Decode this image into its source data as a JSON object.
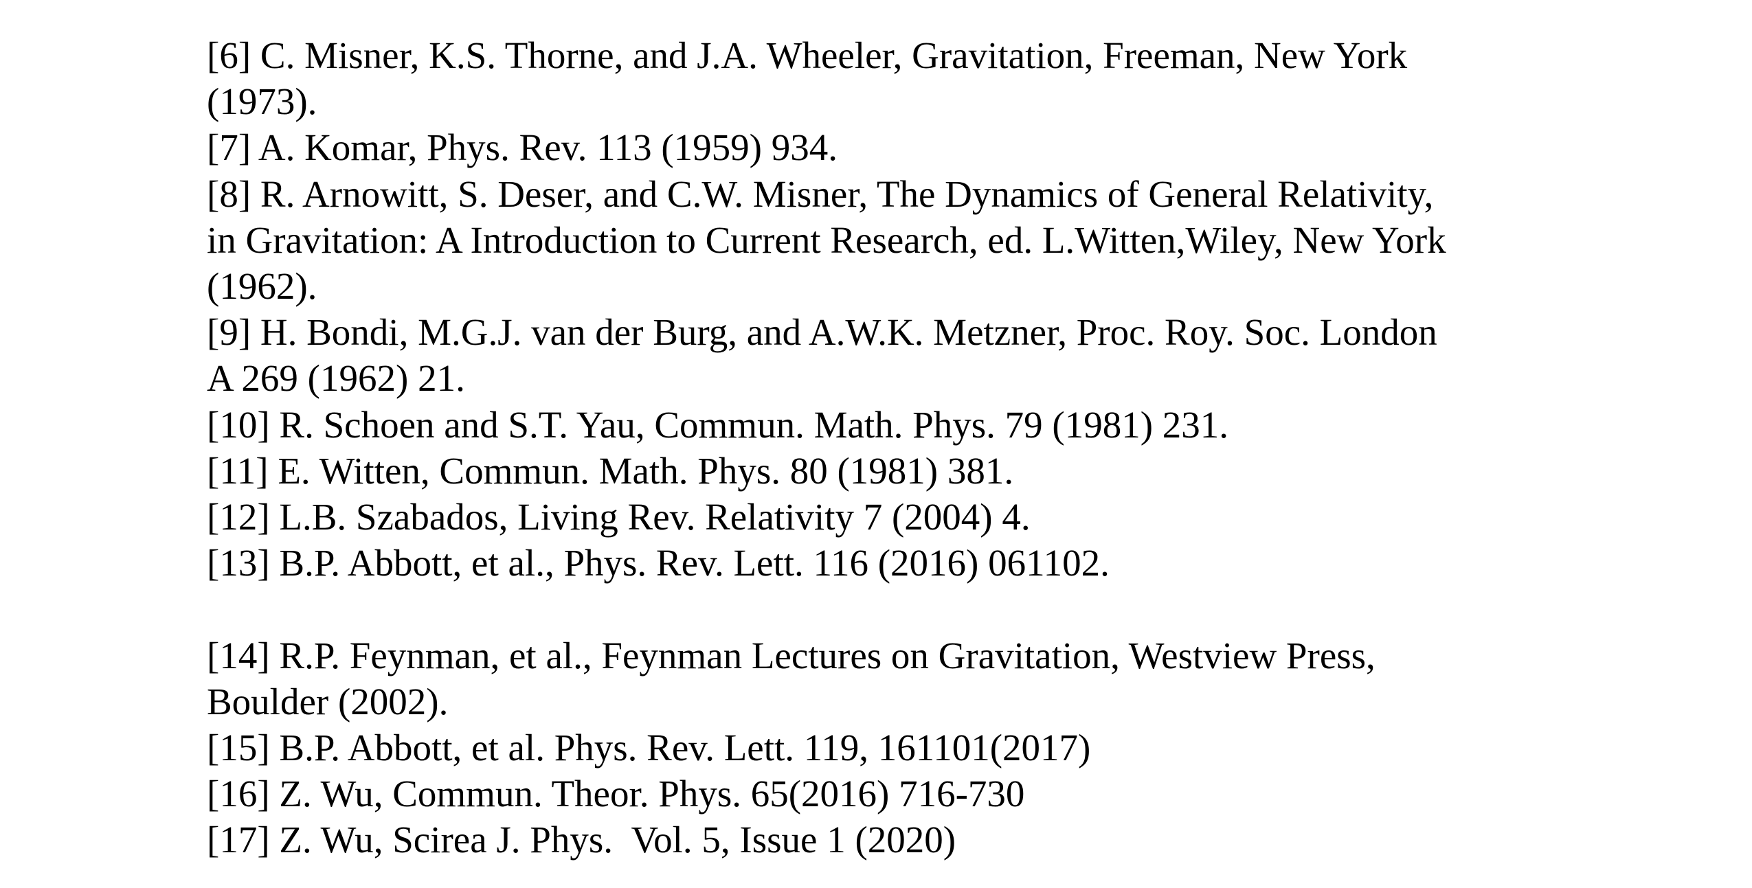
{
  "references": [
    {
      "lines": [
        "[6] C. Misner, K.S. Thorne, and J.A. Wheeler, Gravitation, Freeman, New York",
        "(1973)."
      ]
    },
    {
      "lines": [
        "[7] A. Komar, Phys. Rev. 113 (1959) 934."
      ]
    },
    {
      "lines": [
        "[8] R. Arnowitt, S. Deser, and C.W. Misner, The Dynamics of General Relativity,",
        "in Gravitation: A Introduction to Current Research, ed. L.Witten,Wiley, New York",
        "(1962)."
      ]
    },
    {
      "lines": [
        "[9] H. Bondi, M.G.J. van der Burg, and A.W.K. Metzner, Proc. Roy. Soc. London",
        "A 269 (1962) 21."
      ]
    },
    {
      "lines": [
        "[10] R. Schoen and S.T. Yau, Commun. Math. Phys. 79 (1981) 231."
      ]
    },
    {
      "lines": [
        "[11] E. Witten, Commun. Math. Phys. 80 (1981) 381."
      ]
    },
    {
      "lines": [
        "[12] L.B. Szabados, Living Rev. Relativity 7 (2004) 4."
      ]
    },
    {
      "lines": [
        "[13] B.P. Abbott, et al., Phys. Rev. Lett. 116 (2016) 061102."
      ]
    },
    {
      "lines": [
        "[14] R.P. Feynman, et al., Feynman Lectures on Gravitation, Westview Press,",
        "Boulder (2002)."
      ]
    },
    {
      "lines": [
        "[15] B.P. Abbott, et al. Phys. Rev. Lett. 119, 161101(2017)"
      ]
    },
    {
      "lines": [
        "[16] Z. Wu, Commun. Theor. Phys. 65(2016) 716-730"
      ]
    },
    {
      "lines": [
        "[17] Z. Wu, Scirea J. Phys.  Vol. 5, Issue 1 (2020)"
      ]
    }
  ]
}
